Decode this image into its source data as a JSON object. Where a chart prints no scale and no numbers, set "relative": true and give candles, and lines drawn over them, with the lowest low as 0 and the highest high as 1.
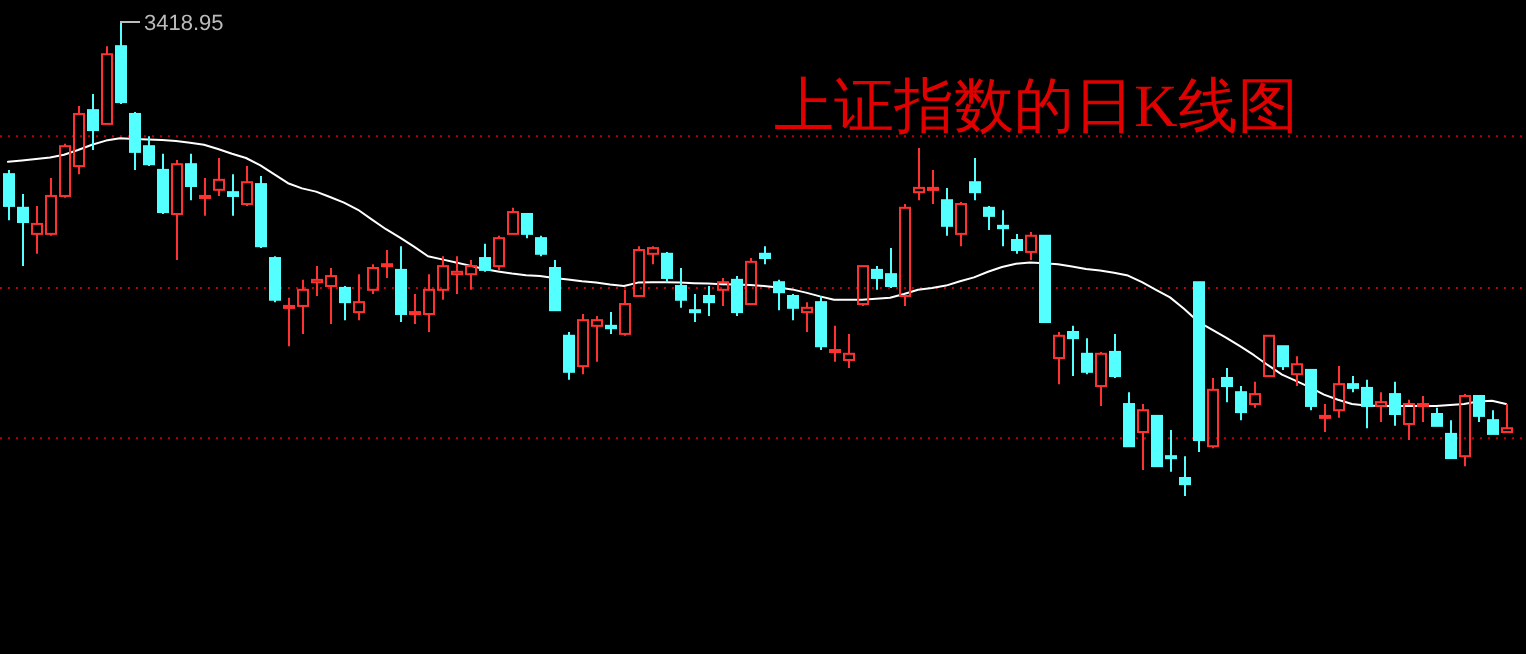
{
  "chart_data": {
    "type": "candlestick",
    "title": "上证指数的日K线图",
    "relative": true,
    "categories": [
      null,
      null,
      null,
      null,
      null,
      null,
      null,
      null,
      null,
      null,
      null,
      null,
      null,
      null,
      null,
      null,
      null,
      null,
      null,
      null,
      null,
      null,
      null,
      null,
      null,
      null,
      null,
      null,
      null,
      null,
      null,
      null,
      null,
      null,
      null,
      null,
      null,
      null,
      null,
      null,
      null,
      null,
      null,
      null,
      null,
      null,
      null,
      null,
      null,
      null,
      null,
      null,
      null,
      null,
      null,
      null,
      null,
      null,
      null,
      null,
      null,
      null,
      null,
      null,
      null,
      null,
      null,
      null,
      null,
      null,
      null,
      null,
      null,
      null,
      null,
      null,
      null,
      null,
      null,
      null,
      null,
      null,
      null,
      null,
      null,
      null,
      null,
      null,
      null,
      null,
      null,
      null,
      null,
      null,
      null,
      null,
      null,
      null,
      null,
      null,
      null,
      null,
      null,
      null,
      null,
      null,
      null,
      null
    ],
    "ohlc": [
      [
        0.679,
        0.688,
        0.582,
        0.612
      ],
      [
        0.608,
        0.637,
        0.485,
        0.578
      ],
      [
        0.553,
        0.612,
        0.511,
        0.574
      ],
      [
        0.553,
        0.671,
        0.549,
        0.633
      ],
      [
        0.633,
        0.743,
        0.629,
        0.738
      ],
      [
        0.696,
        0.823,
        0.679,
        0.806
      ],
      [
        0.814,
        0.848,
        0.73,
        0.772
      ],
      [
        0.785,
        0.949,
        0.785,
        0.932
      ],
      [
        0.949,
        1,
        0.827,
        0.831
      ],
      [
        0.806,
        0.81,
        0.688,
        0.726
      ],
      [
        0.738,
        0.759,
        0.696,
        0.7
      ],
      [
        0.688,
        0.722,
        0.595,
        0.599
      ],
      [
        0.595,
        0.709,
        0.498,
        0.7
      ],
      [
        0.7,
        0.722,
        0.624,
        0.654
      ],
      [
        0.629,
        0.671,
        0.591,
        0.633
      ],
      [
        0.646,
        0.713,
        0.633,
        0.667
      ],
      [
        0.641,
        0.679,
        0.591,
        0.633
      ],
      [
        0.616,
        0.696,
        0.612,
        0.662
      ],
      [
        0.658,
        0.675,
        0.523,
        0.527
      ],
      [
        0.502,
        0.506,
        0.409,
        0.414
      ],
      [
        0.397,
        0.418,
        0.316,
        0.401
      ],
      [
        0.401,
        0.456,
        0.342,
        0.435
      ],
      [
        0.451,
        0.485,
        0.422,
        0.456
      ],
      [
        0.443,
        0.481,
        0.363,
        0.464
      ],
      [
        0.439,
        0.443,
        0.371,
        0.409
      ],
      [
        0.388,
        0.468,
        0.371,
        0.409
      ],
      [
        0.435,
        0.489,
        0.426,
        0.481
      ],
      [
        0.485,
        0.519,
        0.46,
        0.489
      ],
      [
        0.477,
        0.527,
        0.367,
        0.384
      ],
      [
        0.384,
        0.426,
        0.363,
        0.388
      ],
      [
        0.384,
        0.468,
        0.346,
        0.435
      ],
      [
        0.435,
        0.506,
        0.414,
        0.485
      ],
      [
        0.468,
        0.506,
        0.426,
        0.473
      ],
      [
        0.468,
        0.498,
        0.435,
        0.485
      ],
      [
        0.502,
        0.532,
        0.473,
        0.477
      ],
      [
        0.485,
        0.549,
        0.477,
        0.544
      ],
      [
        0.553,
        0.608,
        0.553,
        0.599
      ],
      [
        0.595,
        0.595,
        0.544,
        0.553
      ],
      [
        0.544,
        0.549,
        0.506,
        0.511
      ],
      [
        0.481,
        0.498,
        0.392,
        0.392
      ],
      [
        0.338,
        0.346,
        0.245,
        0.262
      ],
      [
        0.274,
        0.384,
        0.257,
        0.371
      ],
      [
        0.359,
        0.38,
        0.283,
        0.371
      ],
      [
        0.359,
        0.388,
        0.342,
        0.354
      ],
      [
        0.342,
        0.435,
        0.338,
        0.405
      ],
      [
        0.422,
        0.527,
        0.422,
        0.519
      ],
      [
        0.511,
        0.527,
        0.489,
        0.523
      ],
      [
        0.511,
        0.515,
        0.451,
        0.46
      ],
      [
        0.443,
        0.481,
        0.397,
        0.414
      ],
      [
        0.392,
        0.426,
        0.367,
        0.388
      ],
      [
        0.422,
        0.443,
        0.38,
        0.409
      ],
      [
        0.435,
        0.46,
        0.401,
        0.451
      ],
      [
        0.456,
        0.464,
        0.38,
        0.388
      ],
      [
        0.405,
        0.502,
        0.405,
        0.494
      ],
      [
        0.511,
        0.527,
        0.489,
        0.502
      ],
      [
        0.451,
        0.456,
        0.392,
        0.43
      ],
      [
        0.422,
        0.426,
        0.371,
        0.397
      ],
      [
        0.388,
        0.409,
        0.346,
        0.397
      ],
      [
        0.409,
        0.422,
        0.308,
        0.316
      ],
      [
        0.304,
        0.359,
        0.283,
        0.308
      ],
      [
        0.287,
        0.342,
        0.27,
        0.3
      ],
      [
        0.405,
        0.485,
        0.401,
        0.485
      ],
      [
        0.477,
        0.485,
        0.435,
        0.46
      ],
      [
        0.468,
        0.523,
        0.439,
        0.443
      ],
      [
        0.422,
        0.616,
        0.401,
        0.608
      ],
      [
        0.641,
        0.734,
        0.624,
        0.65
      ],
      [
        0.646,
        0.688,
        0.616,
        0.65
      ],
      [
        0.624,
        0.65,
        0.549,
        0.57
      ],
      [
        0.553,
        0.62,
        0.527,
        0.616
      ],
      [
        0.662,
        0.713,
        0.624,
        0.641
      ],
      [
        0.608,
        0.612,
        0.561,
        0.591
      ],
      [
        0.57,
        0.603,
        0.527,
        0.565
      ],
      [
        0.54,
        0.553,
        0.511,
        0.519
      ],
      [
        0.515,
        0.557,
        0.498,
        0.549
      ],
      [
        0.549,
        0.549,
        0.367,
        0.367
      ],
      [
        0.291,
        0.346,
        0.236,
        0.338
      ],
      [
        0.346,
        0.359,
        0.253,
        0.333
      ],
      [
        0.3,
        0.333,
        0.257,
        0.262
      ],
      [
        0.232,
        0.304,
        0.19,
        0.3
      ],
      [
        0.304,
        0.342,
        0.249,
        0.253
      ],
      [
        0.194,
        0.219,
        0.105,
        0.105
      ],
      [
        0.135,
        0.194,
        0.055,
        0.181
      ],
      [
        0.169,
        0.169,
        0.063,
        0.063
      ],
      [
        0.084,
        0.139,
        0.051,
        0.08
      ],
      [
        0.038,
        0.084,
        0,
        0.025
      ],
      [
        0.451,
        0.451,
        0.093,
        0.118
      ],
      [
        0.105,
        0.249,
        0.101,
        0.224
      ],
      [
        0.249,
        0.27,
        0.198,
        0.232
      ],
      [
        0.219,
        0.232,
        0.16,
        0.177
      ],
      [
        0.194,
        0.241,
        0.186,
        0.215
      ],
      [
        0.253,
        0.338,
        0.253,
        0.338
      ],
      [
        0.316,
        0.316,
        0.266,
        0.274
      ],
      [
        0.257,
        0.295,
        0.232,
        0.278
      ],
      [
        0.266,
        0.266,
        0.181,
        0.19
      ],
      [
        0.165,
        0.194,
        0.135,
        0.169
      ],
      [
        0.181,
        0.274,
        0.165,
        0.236
      ],
      [
        0.236,
        0.253,
        0.219,
        0.228
      ],
      [
        0.228,
        0.245,
        0.143,
        0.19
      ],
      [
        0.19,
        0.219,
        0.156,
        0.198
      ],
      [
        0.215,
        0.241,
        0.148,
        0.173
      ],
      [
        0.152,
        0.203,
        0.118,
        0.194
      ],
      [
        0.19,
        0.211,
        0.156,
        0.194
      ],
      [
        0.173,
        0.186,
        0.148,
        0.148
      ],
      [
        0.131,
        0.16,
        0.08,
        0.08
      ],
      [
        0.084,
        0.215,
        0.063,
        0.211
      ],
      [
        0.211,
        0.211,
        0.156,
        0.169
      ],
      [
        0.16,
        0.181,
        0.131,
        0.131
      ],
      [
        0.135,
        0.194,
        0.135,
        0.143
      ]
    ],
    "colors": [
      "#54ffff",
      "#54ffff",
      "#ff3232",
      "#ff3232",
      "#ff3232",
      "#ff3232",
      "#54ffff",
      "#ff3232",
      "#54ffff",
      "#54ffff",
      "#54ffff",
      "#54ffff",
      "#ff3232",
      "#54ffff",
      "#ff3232",
      "#ff3232",
      "#54ffff",
      "#ff3232",
      "#54ffff",
      "#54ffff",
      "#ff3232",
      "#ff3232",
      "#ff3232",
      "#ff3232",
      "#54ffff",
      "#ff3232",
      "#ff3232",
      "#ff3232",
      "#54ffff",
      "#ff3232",
      "#ff3232",
      "#ff3232",
      "#ff3232",
      "#ff3232",
      "#54ffff",
      "#ff3232",
      "#ff3232",
      "#54ffff",
      "#54ffff",
      "#54ffff",
      "#54ffff",
      "#ff3232",
      "#ff3232",
      "#54ffff",
      "#ff3232",
      "#ff3232",
      "#ff3232",
      "#54ffff",
      "#54ffff",
      "#54ffff",
      "#54ffff",
      "#ff3232",
      "#54ffff",
      "#ff3232",
      "#54ffff",
      "#54ffff",
      "#54ffff",
      "#ff3232",
      "#54ffff",
      "#ff3232",
      "#ff3232",
      "#ff3232",
      "#54ffff",
      "#54ffff",
      "#ff3232",
      "#ff3232",
      "#ff3232",
      "#54ffff",
      "#ff3232",
      "#54ffff",
      "#54ffff",
      "#54ffff",
      "#54ffff",
      "#ff3232",
      "#54ffff",
      "#ff3232",
      "#54ffff",
      "#54ffff",
      "#ff3232",
      "#54ffff",
      "#54ffff",
      "#ff3232",
      "#54ffff",
      "#54ffff",
      "#54ffff",
      "#54ffff",
      "#ff3232",
      "#54ffff",
      "#54ffff",
      "#ff3232",
      "#ff3232",
      "#54ffff",
      "#ff3232",
      "#54ffff",
      "#ff3232",
      "#ff3232",
      "#54ffff",
      "#54ffff",
      "#ff3232",
      "#54ffff",
      "#ff3232",
      "#ff3232",
      "#54ffff",
      "#54ffff",
      "#ff3232",
      "#54ffff",
      "#54ffff",
      "#ff3232"
    ],
    "series": [
      {
        "type": "line",
        "color": "#ffffff",
        "values": [
          0.705,
          0.708,
          0.711,
          0.714,
          0.72,
          0.73,
          0.741,
          0.75,
          0.755,
          0.753,
          0.752,
          0.751,
          0.749,
          0.745,
          0.741,
          0.732,
          0.722,
          0.713,
          0.698,
          0.679,
          0.66,
          0.649,
          0.642,
          0.631,
          0.619,
          0.604,
          0.583,
          0.563,
          0.545,
          0.526,
          0.506,
          0.499,
          0.493,
          0.486,
          0.479,
          0.474,
          0.469,
          0.466,
          0.464,
          0.46,
          0.457,
          0.453,
          0.45,
          0.446,
          0.443,
          0.45,
          0.451,
          0.451,
          0.45,
          0.449,
          0.448,
          0.447,
          0.446,
          0.445,
          0.443,
          0.44,
          0.436,
          0.429,
          0.421,
          0.414,
          0.414,
          0.414,
          0.416,
          0.418,
          0.426,
          0.435,
          0.439,
          0.444,
          0.453,
          0.461,
          0.473,
          0.483,
          0.49,
          0.493,
          0.491,
          0.489,
          0.484,
          0.479,
          0.476,
          0.471,
          0.465,
          0.451,
          0.435,
          0.419,
          0.395,
          0.368,
          0.351,
          0.334,
          0.316,
          0.297,
          0.276,
          0.256,
          0.243,
          0.229,
          0.214,
          0.203,
          0.194,
          0.191,
          0.19,
          0.19,
          0.19,
          0.19,
          0.19,
          0.192,
          0.194,
          0.199,
          0.201,
          0.194
        ]
      }
    ],
    "ref_lines": [
      {
        "axis": "y",
        "value": 0.759,
        "color": "#c00000",
        "line_style": "dotted"
      },
      {
        "axis": "y",
        "value": 0.439,
        "color": "#c00000",
        "line_style": "dotted"
      },
      {
        "axis": "y",
        "value": 0.122,
        "color": "#c00000",
        "line_style": "dotted"
      }
    ],
    "annotations": [
      "3418.95"
    ]
  }
}
